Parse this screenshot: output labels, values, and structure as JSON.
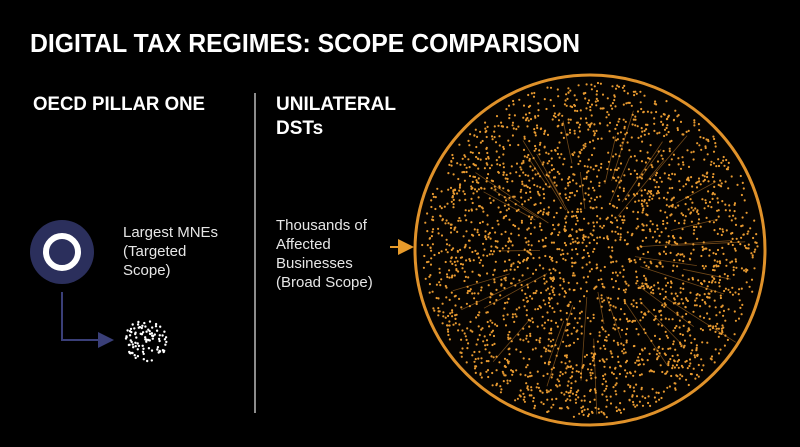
{
  "header": {
    "title": "DIGITAL TAX REGIMES: SCOPE COMPARISON"
  },
  "left": {
    "heading": "OECD PILLAR ONE",
    "label_lines": [
      "Largest MNEs",
      "(Targeted",
      "Scope)"
    ]
  },
  "right": {
    "heading_lines": [
      "UNILATERAL",
      "DSTs"
    ],
    "label_lines": [
      "Thousands of",
      "Affected",
      "Businesses",
      "(Broad Scope)"
    ]
  }
}
